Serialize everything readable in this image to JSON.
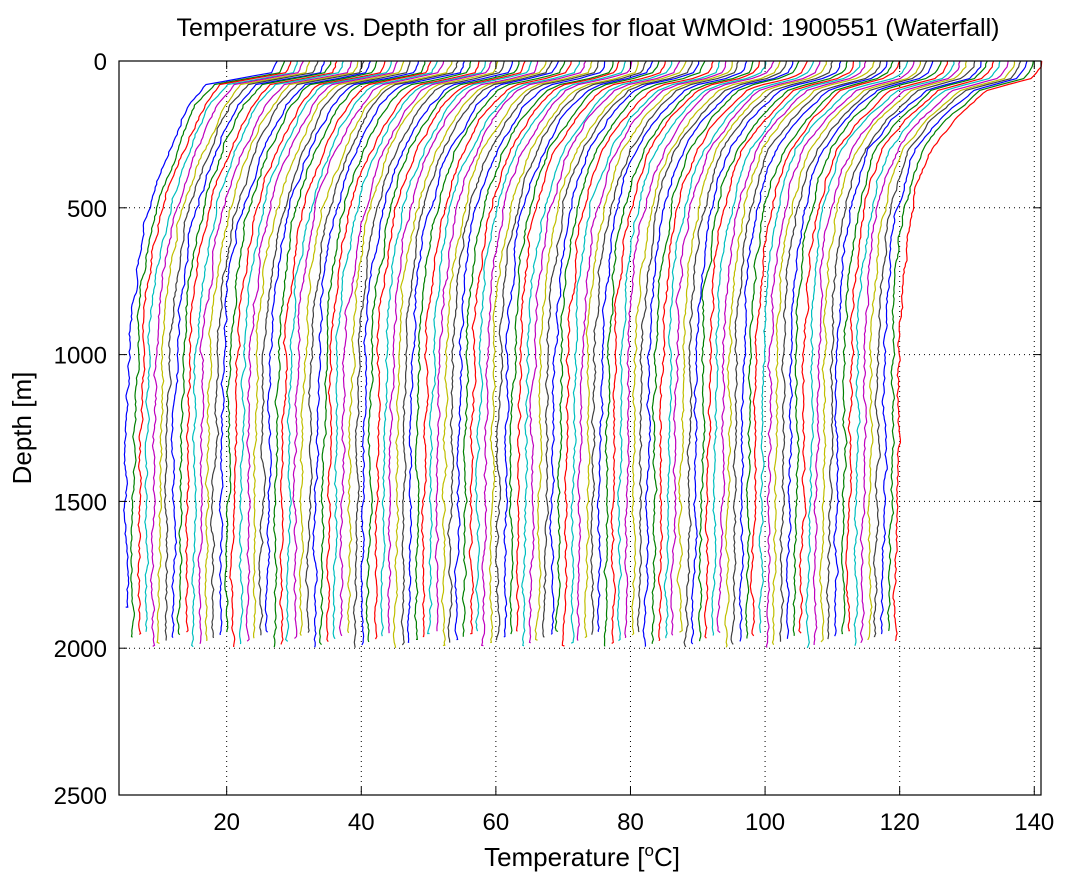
{
  "chart_data": {
    "type": "line",
    "title": "Temperature vs. Depth for all profiles for float WMOId: 1900551 (Waterfall)",
    "xlabel_prefix": "Temperature [",
    "xlabel_sup": "o",
    "xlabel_suffix": "C]",
    "ylabel": "Depth [m]",
    "xlim": [
      4,
      141
    ],
    "ylim": [
      0,
      2500
    ],
    "y_reversed": true,
    "grid": "dotted",
    "xticks": [
      20,
      40,
      60,
      80,
      100,
      120,
      140
    ],
    "yticks": [
      0,
      500,
      1000,
      1500,
      2000,
      2500
    ],
    "series_count": 115,
    "x_offset_per_profile": 1,
    "color_cycle": [
      "#0000ff",
      "#008000",
      "#ff0000",
      "#00bfbf",
      "#bf00bf",
      "#bfbf00",
      "#404040"
    ],
    "series": [
      {
        "index": 0,
        "x": [
          27.5,
          27.2,
          26.8,
          17.0,
          14.5,
          12.6,
          10.8,
          9.2,
          8.0,
          7.2,
          6.5,
          5.9,
          5.6,
          5.4,
          5.3,
          5.2,
          5.1,
          5.0,
          5.0,
          5.0,
          5.0
        ],
        "y": [
          0,
          20,
          40,
          80,
          150,
          250,
          350,
          450,
          550,
          650,
          750,
          850,
          950,
          1100,
          1250,
          1400,
          1550,
          1700,
          1800,
          1860,
          1870
        ]
      },
      {
        "index": 114,
        "x": [
          141.0,
          140.8,
          139.5,
          133.0,
          128.0,
          124.5,
          122.8,
          121.8,
          121.0,
          120.5,
          120.2,
          120.0,
          119.9,
          119.8,
          119.7,
          119.6,
          119.5,
          119.4,
          119.3
        ],
        "y": [
          0,
          20,
          60,
          100,
          200,
          300,
          400,
          500,
          600,
          700,
          800,
          900,
          1000,
          1200,
          1400,
          1600,
          1800,
          1950,
          2000
        ]
      }
    ]
  }
}
